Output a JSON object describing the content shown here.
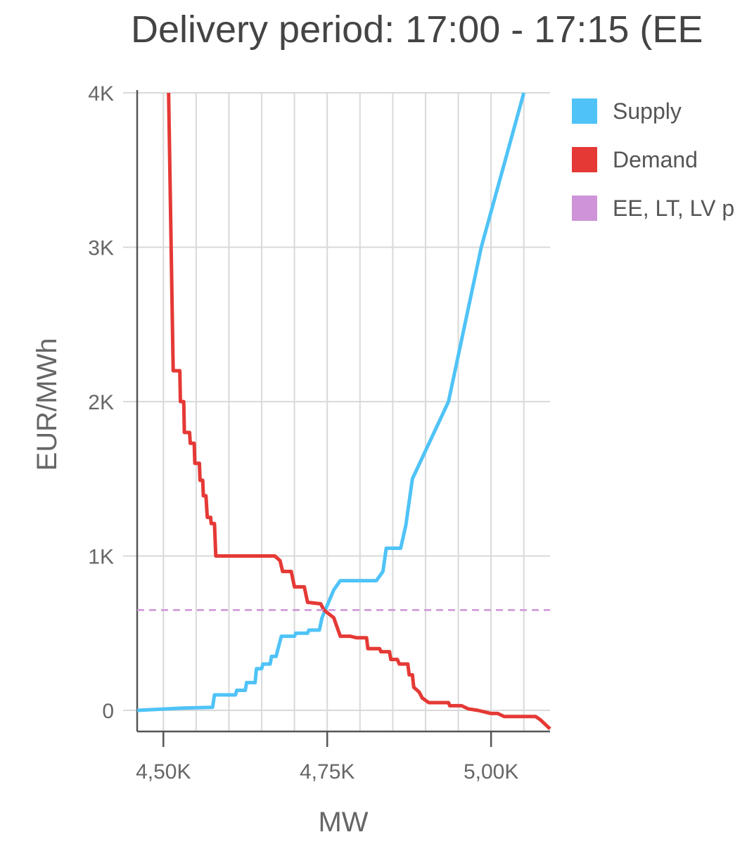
{
  "chart_data": {
    "type": "line",
    "title": "Delivery period: 17:00 - 17:15 (EE",
    "xlabel": "MW",
    "ylabel": "EUR/MWh",
    "xlim": [
      4460,
      5090
    ],
    "ylim": [
      -150,
      4000
    ],
    "x_ticks": [
      4500,
      4750,
      5000
    ],
    "x_tick_labels": [
      "4,50K",
      "4,75K",
      "5,00K"
    ],
    "y_ticks": [
      0,
      1000,
      2000,
      3000,
      4000
    ],
    "y_tick_labels": [
      "0",
      "1K",
      "2K",
      "3K",
      "4K"
    ],
    "x_grid": [
      4500,
      4550,
      4600,
      4650,
      4700,
      4750,
      4800,
      4850,
      4900,
      4950,
      5000,
      5050
    ],
    "grid": true,
    "legend_position": "right",
    "series": [
      {
        "name": "Supply",
        "color": "#4fc3f7",
        "points": [
          [
            4460,
            0
          ],
          [
            4530,
            15
          ],
          [
            4575,
            20
          ],
          [
            4578,
            100
          ],
          [
            4610,
            100
          ],
          [
            4612,
            130
          ],
          [
            4625,
            130
          ],
          [
            4627,
            180
          ],
          [
            4640,
            180
          ],
          [
            4642,
            270
          ],
          [
            4650,
            270
          ],
          [
            4652,
            300
          ],
          [
            4663,
            300
          ],
          [
            4665,
            350
          ],
          [
            4672,
            350
          ],
          [
            4675,
            400
          ],
          [
            4680,
            480
          ],
          [
            4700,
            480
          ],
          [
            4702,
            500
          ],
          [
            4720,
            500
          ],
          [
            4722,
            520
          ],
          [
            4738,
            520
          ],
          [
            4742,
            600
          ],
          [
            4750,
            680
          ],
          [
            4760,
            780
          ],
          [
            4770,
            840
          ],
          [
            4825,
            840
          ],
          [
            4835,
            900
          ],
          [
            4840,
            1050
          ],
          [
            4862,
            1050
          ],
          [
            4870,
            1200
          ],
          [
            4880,
            1500
          ],
          [
            4935,
            2000
          ],
          [
            4985,
            3000
          ],
          [
            5050,
            4000
          ]
        ]
      },
      {
        "name": "Demand",
        "color": "#e53935",
        "points": [
          [
            4508,
            4000
          ],
          [
            4515,
            2200
          ],
          [
            4525,
            2200
          ],
          [
            4526,
            2000
          ],
          [
            4531,
            2000
          ],
          [
            4532,
            1800
          ],
          [
            4540,
            1800
          ],
          [
            4541,
            1730
          ],
          [
            4547,
            1730
          ],
          [
            4548,
            1600
          ],
          [
            4555,
            1600
          ],
          [
            4556,
            1490
          ],
          [
            4560,
            1490
          ],
          [
            4561,
            1390
          ],
          [
            4565,
            1390
          ],
          [
            4567,
            1250
          ],
          [
            4572,
            1250
          ],
          [
            4573,
            1210
          ],
          [
            4578,
            1210
          ],
          [
            4580,
            1000
          ],
          [
            4670,
            1000
          ],
          [
            4678,
            970
          ],
          [
            4682,
            900
          ],
          [
            4695,
            900
          ],
          [
            4700,
            800
          ],
          [
            4715,
            800
          ],
          [
            4720,
            700
          ],
          [
            4740,
            690
          ],
          [
            4745,
            650
          ],
          [
            4760,
            600
          ],
          [
            4770,
            480
          ],
          [
            4785,
            480
          ],
          [
            4795,
            470
          ],
          [
            4810,
            470
          ],
          [
            4812,
            400
          ],
          [
            4830,
            400
          ],
          [
            4832,
            380
          ],
          [
            4845,
            380
          ],
          [
            4847,
            330
          ],
          [
            4857,
            330
          ],
          [
            4860,
            300
          ],
          [
            4873,
            300
          ],
          [
            4875,
            230
          ],
          [
            4880,
            230
          ],
          [
            4882,
            150
          ],
          [
            4890,
            120
          ],
          [
            4895,
            80
          ],
          [
            4905,
            50
          ],
          [
            4935,
            50
          ],
          [
            4937,
            30
          ],
          [
            4955,
            30
          ],
          [
            4965,
            10
          ],
          [
            4980,
            0
          ],
          [
            5000,
            -20
          ],
          [
            5010,
            -20
          ],
          [
            5020,
            -40
          ],
          [
            5068,
            -40
          ],
          [
            5075,
            -60
          ],
          [
            5090,
            -120
          ]
        ]
      },
      {
        "name": "EE, LT, LV p",
        "color": "#ce93d8",
        "type": "horizontal-dashed",
        "value": 650
      }
    ]
  }
}
